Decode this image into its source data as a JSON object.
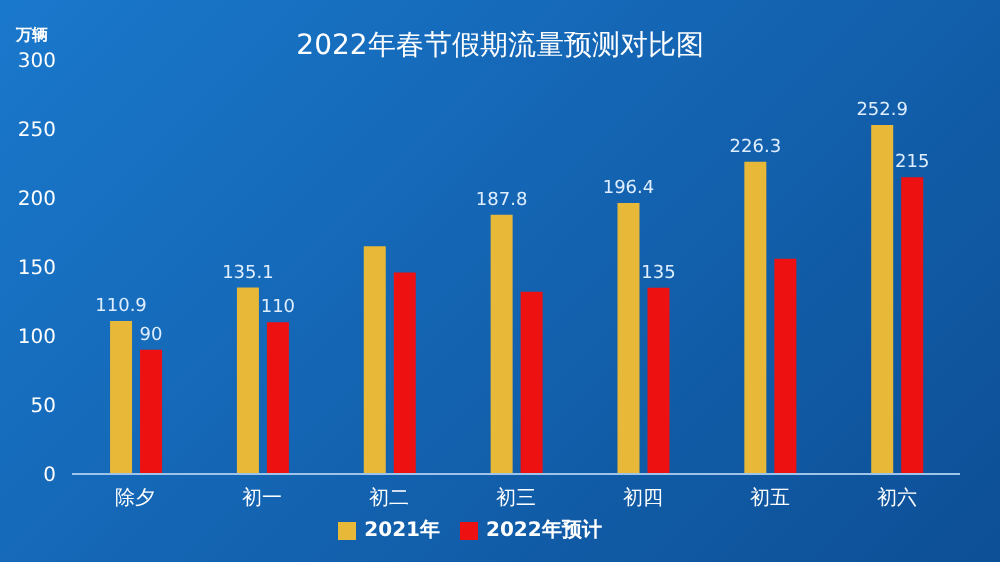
{
  "chart_data": {
    "type": "bar",
    "title": "2022年春节假期流量预测对比图",
    "ylabel": "万辆",
    "categories": [
      "除夕",
      "初一",
      "初二",
      "初三",
      "初四",
      "初五",
      "初六"
    ],
    "series": [
      {
        "name": "2021年",
        "color": "#e8b838",
        "values": [
          110.9,
          135.1,
          165,
          187.8,
          196.4,
          226.3,
          252.9
        ],
        "value_labels": [
          "110.9",
          "135.1",
          null,
          "187.8",
          "196.4",
          "226.3",
          "252.9"
        ]
      },
      {
        "name": "2022年预计",
        "color": "#ee1111",
        "values": [
          90,
          110,
          146,
          132,
          135,
          156,
          215
        ],
        "value_labels": [
          "90",
          "110",
          null,
          null,
          "135",
          null,
          "215"
        ]
      }
    ],
    "ylim": [
      0,
      300
    ],
    "yticks": [
      0,
      50,
      100,
      150,
      200,
      250,
      300
    ],
    "grid": false,
    "legend": "bottom"
  }
}
